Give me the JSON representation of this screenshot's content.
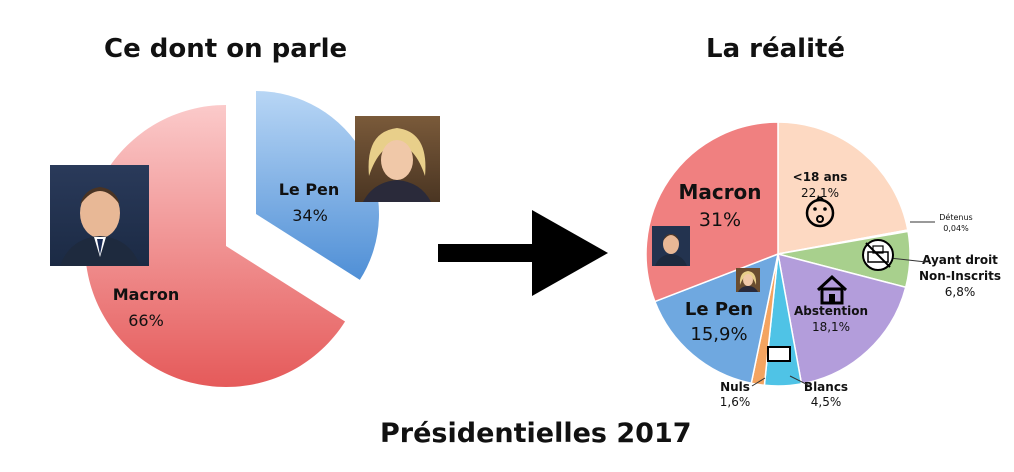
{
  "left_title": "Ce dont on parle",
  "right_title": "La réalité",
  "bottom_title": "Présidentielles 2017",
  "colors": {
    "macron": "#f08080",
    "lepen": "#6fa8e0",
    "under18": "#fdd9c2",
    "non_inscrits": "#a8d08d",
    "abstention": "#b39ddb",
    "blancs": "#4fc3e6",
    "nuls": "#f4a460",
    "detenus": "#dddddd"
  },
  "chart_data": [
    {
      "type": "pie",
      "title": "Ce dont on parle",
      "exploded": true,
      "slices": [
        {
          "name": "Macron",
          "value": 66,
          "label": "66%"
        },
        {
          "name": "Le Pen",
          "value": 34,
          "label": "34%"
        }
      ]
    },
    {
      "type": "pie",
      "title": "La réalité",
      "slices": [
        {
          "name": "<18 ans",
          "value": 22.1,
          "label": "22,1%"
        },
        {
          "name": "Détenus",
          "value": 0.04,
          "label": "0,04%"
        },
        {
          "name": "Ayant droit Non-Inscrits",
          "value": 6.8,
          "label": "6,8%"
        },
        {
          "name": "Abstention",
          "value": 18.1,
          "label": "18,1%"
        },
        {
          "name": "Blancs",
          "value": 4.5,
          "label": "4,5%"
        },
        {
          "name": "Nuls",
          "value": 1.6,
          "label": "1,6%"
        },
        {
          "name": "Le Pen",
          "value": 15.9,
          "label": "15,9%"
        },
        {
          "name": "Macron",
          "value": 31,
          "label": "31%"
        }
      ]
    }
  ]
}
